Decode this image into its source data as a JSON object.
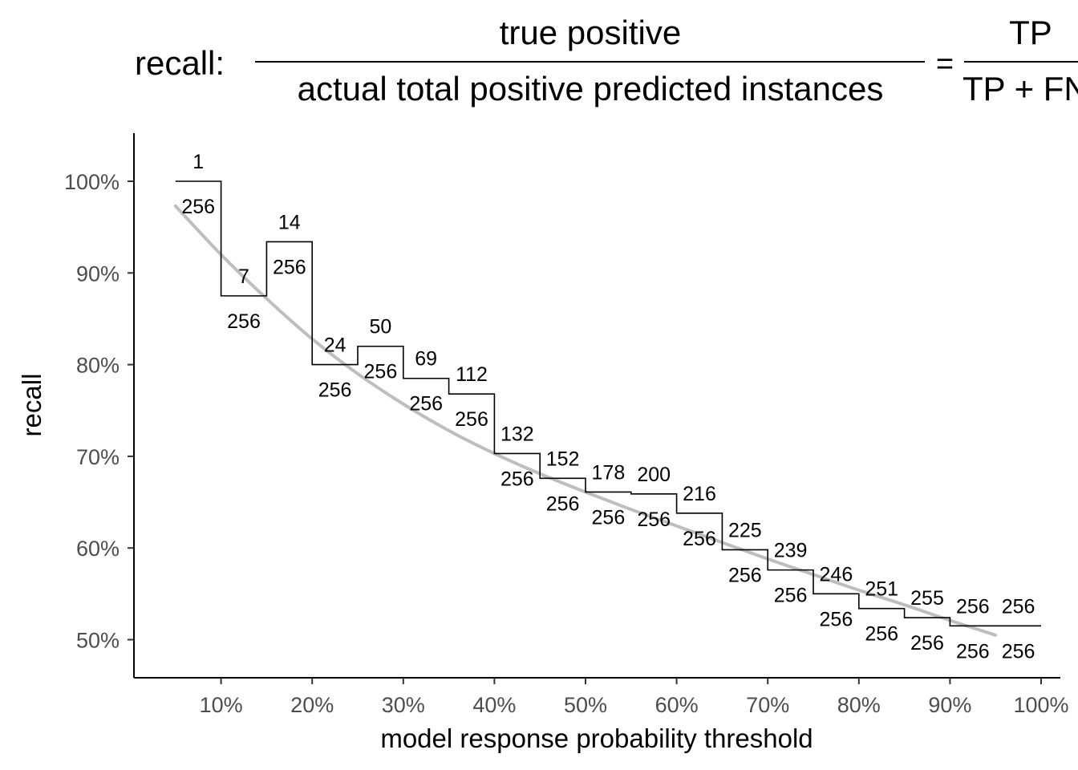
{
  "formula": {
    "prefix": "recall:",
    "numerator": "true positive",
    "denominator": "actual total positive predicted instances",
    "equals": "=",
    "rhs_numerator": "TP",
    "rhs_denominator": "TP + FN"
  },
  "chart_data": {
    "type": "line",
    "xlabel": "model response probability threshold",
    "ylabel": "recall",
    "xlim": [
      0.0,
      1.0
    ],
    "ylim": [
      0.46,
      1.05
    ],
    "x_ticks": [
      0.1,
      0.2,
      0.3,
      0.4,
      0.5,
      0.6,
      0.7,
      0.8,
      0.9,
      1.0
    ],
    "x_tick_labels": [
      "10%",
      "20%",
      "30%",
      "40%",
      "50%",
      "60%",
      "70%",
      "80%",
      "90%",
      "100%"
    ],
    "y_ticks": [
      0.5,
      0.6,
      0.7,
      0.8,
      0.9,
      1.0
    ],
    "y_tick_labels": [
      "50%",
      "60%",
      "70%",
      "80%",
      "90%",
      "100%"
    ],
    "grid": false,
    "series": [
      {
        "style": "step",
        "color": "#000000",
        "x": [
          0.05,
          0.1,
          0.15,
          0.2,
          0.25,
          0.3,
          0.35,
          0.4,
          0.45,
          0.5,
          0.55,
          0.6,
          0.65,
          0.7,
          0.75,
          0.8,
          0.85,
          0.9,
          0.95
        ],
        "y": [
          1.0,
          0.875,
          0.934,
          0.8,
          0.82,
          0.785,
          0.768,
          0.703,
          0.676,
          0.661,
          0.659,
          0.638,
          0.598,
          0.576,
          0.55,
          0.534,
          0.524,
          0.515,
          0.515
        ],
        "numerator_labels": [
          "1",
          "7",
          "14",
          "24",
          "50",
          "69",
          "112",
          "132",
          "152",
          "178",
          "200",
          "216",
          "225",
          "239",
          "246",
          "251",
          "255",
          "256",
          "256"
        ],
        "denominator_labels": [
          "256",
          "256",
          "256",
          "256",
          "256",
          "256",
          "256",
          "256",
          "256",
          "256",
          "256",
          "256",
          "256",
          "256",
          "256",
          "256",
          "256",
          "256",
          "256"
        ]
      },
      {
        "style": "smooth",
        "color": "#bebebe",
        "x": [
          0.05,
          0.1,
          0.15,
          0.2,
          0.25,
          0.3,
          0.35,
          0.4,
          0.45,
          0.5,
          0.55,
          0.6,
          0.65,
          0.7,
          0.75,
          0.8,
          0.85,
          0.9,
          0.95
        ],
        "y": [
          0.973,
          0.92,
          0.872,
          0.828,
          0.79,
          0.757,
          0.728,
          0.703,
          0.681,
          0.661,
          0.642,
          0.624,
          0.606,
          0.588,
          0.571,
          0.554,
          0.538,
          0.521,
          0.505
        ]
      }
    ]
  }
}
